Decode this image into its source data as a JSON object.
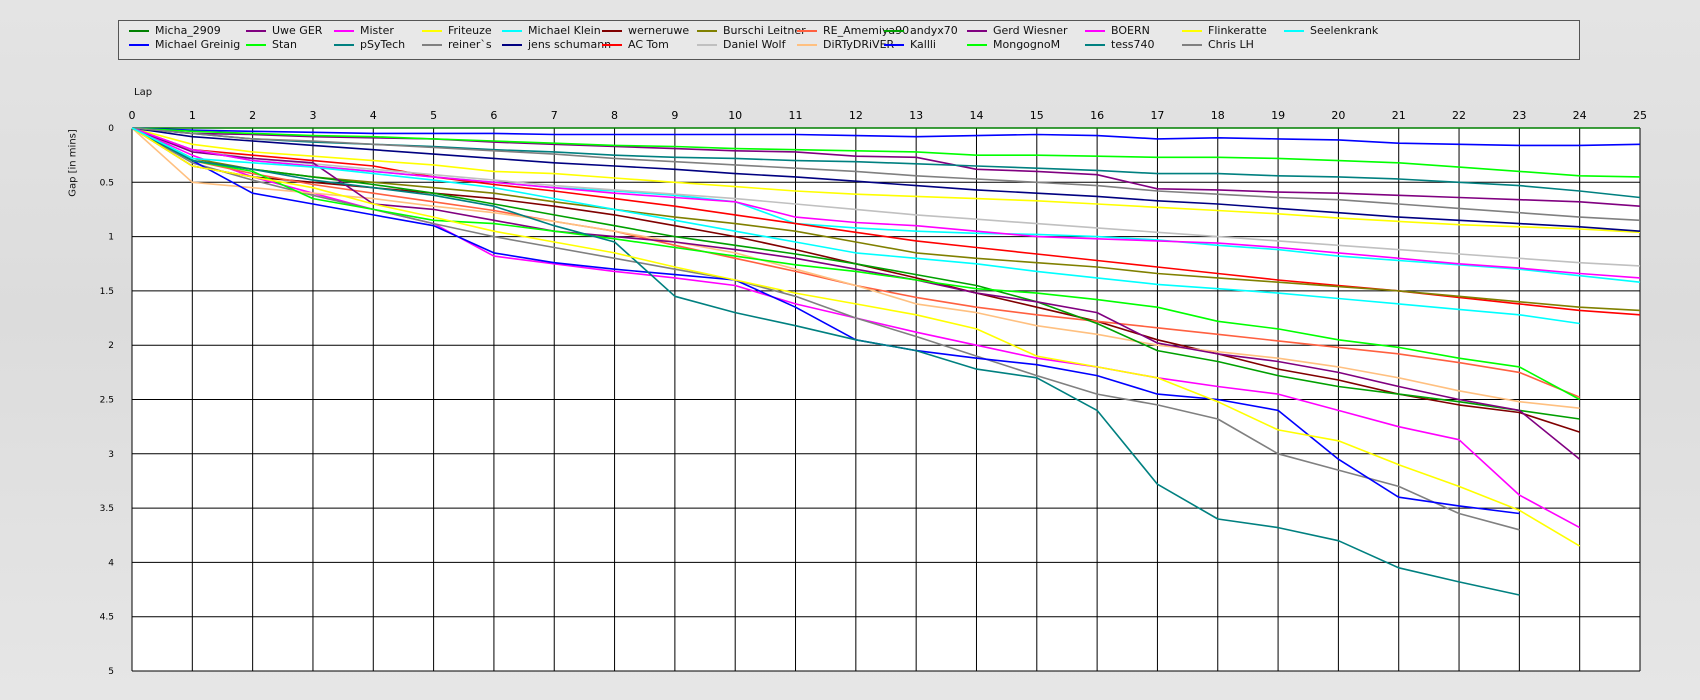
{
  "chart_data": {
    "type": "line",
    "xlabel": "Lap",
    "ylabel": "Gap [in mins]",
    "xlim": [
      0,
      25
    ],
    "ylim": [
      0,
      5
    ],
    "y_inverted": true,
    "grid": true,
    "legend_position": "top",
    "x_ticks": [
      "0",
      "1",
      "2",
      "3",
      "4",
      "5",
      "6",
      "7",
      "8",
      "9",
      "10",
      "11",
      "12",
      "13",
      "14",
      "15",
      "16",
      "17",
      "18",
      "19",
      "20",
      "21",
      "22",
      "23",
      "24",
      "25"
    ],
    "y_ticks": [
      "0",
      "0.5",
      "1",
      "1.5",
      "2",
      "2.5",
      "3",
      "3.5",
      "4",
      "4.5",
      "5"
    ],
    "series": [
      {
        "name": "Micha_2909",
        "color": "#008000",
        "values": [
          0,
          0,
          0,
          0,
          0,
          0,
          0,
          0,
          0,
          0,
          0,
          0,
          0,
          0,
          0,
          0,
          0,
          0,
          0,
          0,
          0,
          0,
          0,
          0,
          0,
          0
        ]
      },
      {
        "name": "Michael Greinig",
        "color": "#0000ff",
        "values": [
          0,
          0.02,
          0.03,
          0.04,
          0.05,
          0.05,
          0.05,
          0.06,
          0.06,
          0.06,
          0.06,
          0.06,
          0.07,
          0.08,
          0.07,
          0.06,
          0.07,
          0.1,
          0.09,
          0.1,
          0.11,
          0.14,
          0.15,
          0.16,
          0.16,
          0.15
        ]
      },
      {
        "name": "Uwe GER",
        "color": "#800080",
        "values": [
          0,
          0.05,
          0.06,
          0.08,
          0.09,
          0.1,
          0.13,
          0.15,
          0.17,
          0.19,
          0.21,
          0.22,
          0.26,
          0.27,
          0.38,
          0.4,
          0.43,
          0.56,
          0.57,
          0.59,
          0.6,
          0.62,
          0.64,
          0.66,
          0.68,
          0.72
        ]
      },
      {
        "name": "Stan",
        "color": "#00ff00",
        "values": [
          0,
          0.03,
          0.05,
          0.07,
          0.08,
          0.1,
          0.12,
          0.14,
          0.16,
          0.17,
          0.19,
          0.2,
          0.21,
          0.22,
          0.25,
          0.25,
          0.26,
          0.27,
          0.27,
          0.28,
          0.3,
          0.32,
          0.36,
          0.4,
          0.44,
          0.45
        ]
      },
      {
        "name": "Mister",
        "color": "#ff00ff",
        "values": [
          0,
          0.25,
          0.45,
          0.6,
          0.75,
          0.88,
          1.18,
          1.25,
          1.32,
          1.38,
          1.45,
          1.62,
          1.75,
          1.88,
          2.0,
          2.12,
          2.2,
          2.3,
          2.38,
          2.45,
          2.6,
          2.75,
          2.87,
          3.38,
          3.68
        ]
      },
      {
        "name": "pSyTech",
        "color": "#008080",
        "values": [
          0,
          0.05,
          0.1,
          0.13,
          0.15,
          0.17,
          0.2,
          0.22,
          0.25,
          0.27,
          0.28,
          0.3,
          0.31,
          0.33,
          0.35,
          0.37,
          0.39,
          0.42,
          0.42,
          0.44,
          0.45,
          0.47,
          0.5,
          0.53,
          0.58,
          0.64
        ]
      },
      {
        "name": "Friteuze",
        "color": "#ffff00",
        "values": [
          0,
          0.15,
          0.22,
          0.26,
          0.3,
          0.34,
          0.4,
          0.42,
          0.46,
          0.5,
          0.54,
          0.58,
          0.61,
          0.63,
          0.65,
          0.67,
          0.7,
          0.73,
          0.76,
          0.79,
          0.83,
          0.86,
          0.89,
          0.91,
          0.93,
          0.96
        ]
      },
      {
        "name": "reiner`s",
        "color": "#808080",
        "values": [
          0,
          0.32,
          0.48,
          0.62,
          0.75,
          0.88,
          1.0,
          1.1,
          1.2,
          1.3,
          1.4,
          1.55,
          1.75,
          1.92,
          2.1,
          2.28,
          2.45,
          2.55,
          2.68,
          3.0,
          3.15,
          3.3,
          3.55,
          3.7
        ]
      },
      {
        "name": "Michael Klein",
        "color": "#00ffff",
        "values": [
          0,
          0.2,
          0.3,
          0.35,
          0.4,
          0.45,
          0.5,
          0.55,
          0.58,
          0.62,
          0.68,
          0.88,
          0.92,
          0.95,
          0.97,
          0.98,
          1.0,
          1.03,
          1.08,
          1.12,
          1.18,
          1.22,
          1.26,
          1.3,
          1.36,
          1.42
        ]
      },
      {
        "name": "jens  schumann",
        "color": "#000080",
        "values": [
          0,
          0.08,
          0.12,
          0.16,
          0.2,
          0.24,
          0.28,
          0.32,
          0.35,
          0.38,
          0.42,
          0.45,
          0.49,
          0.53,
          0.57,
          0.6,
          0.63,
          0.67,
          0.7,
          0.74,
          0.78,
          0.82,
          0.85,
          0.88,
          0.91,
          0.95
        ]
      },
      {
        "name": "werneruwe",
        "color": "#800000",
        "values": [
          0,
          0.35,
          0.45,
          0.5,
          0.55,
          0.6,
          0.65,
          0.72,
          0.8,
          0.9,
          1.0,
          1.12,
          1.25,
          1.38,
          1.52,
          1.65,
          1.78,
          1.95,
          2.08,
          2.22,
          2.32,
          2.45,
          2.55,
          2.62,
          2.8
        ]
      },
      {
        "name": "AC Tom",
        "color": "#ff0000",
        "values": [
          0,
          0.2,
          0.25,
          0.3,
          0.35,
          0.45,
          0.52,
          0.58,
          0.65,
          0.72,
          0.8,
          0.88,
          0.96,
          1.04,
          1.1,
          1.16,
          1.22,
          1.28,
          1.34,
          1.4,
          1.45,
          1.5,
          1.56,
          1.62,
          1.68,
          1.72
        ]
      },
      {
        "name": "Burschi Leitner",
        "color": "#808000",
        "values": [
          0,
          0.28,
          0.38,
          0.45,
          0.5,
          0.55,
          0.6,
          0.68,
          0.75,
          0.82,
          0.88,
          0.95,
          1.05,
          1.15,
          1.2,
          1.24,
          1.28,
          1.34,
          1.38,
          1.42,
          1.46,
          1.5,
          1.55,
          1.6,
          1.65,
          1.68
        ]
      },
      {
        "name": "Daniel Wolf",
        "color": "#c0c0c0",
        "values": [
          0,
          0.2,
          0.28,
          0.33,
          0.38,
          0.43,
          0.48,
          0.53,
          0.57,
          0.61,
          0.65,
          0.7,
          0.75,
          0.8,
          0.84,
          0.88,
          0.92,
          0.96,
          1.0,
          1.04,
          1.08,
          1.12,
          1.16,
          1.2,
          1.24,
          1.27
        ]
      },
      {
        "name": "RE_Amemiya90",
        "color": "#ff6040",
        "values": [
          0,
          0.3,
          0.42,
          0.52,
          0.6,
          0.68,
          0.76,
          0.86,
          0.95,
          1.08,
          1.2,
          1.32,
          1.45,
          1.56,
          1.65,
          1.72,
          1.78,
          1.84,
          1.9,
          1.96,
          2.02,
          2.08,
          2.16,
          2.25,
          2.48
        ]
      },
      {
        "name": "DiRTyDRiVER",
        "color": "#ffc080",
        "values": [
          0,
          0.5,
          0.55,
          0.6,
          0.65,
          0.72,
          0.78,
          0.86,
          0.95,
          1.05,
          1.15,
          1.3,
          1.45,
          1.62,
          1.7,
          1.82,
          1.9,
          2.0,
          2.06,
          2.12,
          2.2,
          2.3,
          2.42,
          2.52,
          2.58
        ]
      },
      {
        "name": "andyx70",
        "color": "#00a000",
        "values": [
          0,
          0.3,
          0.38,
          0.45,
          0.52,
          0.6,
          0.7,
          0.8,
          0.9,
          1.0,
          1.08,
          1.16,
          1.25,
          1.35,
          1.45,
          1.6,
          1.8,
          2.05,
          2.15,
          2.28,
          2.38,
          2.45,
          2.52,
          2.6,
          2.68
        ]
      },
      {
        "name": "Kallli",
        "color": "#0000ff",
        "values": [
          0,
          0.3,
          0.6,
          0.7,
          0.8,
          0.9,
          1.15,
          1.24,
          1.3,
          1.35,
          1.4,
          1.65,
          1.95,
          2.05,
          2.12,
          2.18,
          2.28,
          2.45,
          2.5,
          2.6,
          3.05,
          3.4,
          3.48,
          3.55
        ]
      },
      {
        "name": "Gerd Wiesner",
        "color": "#800080",
        "values": [
          0,
          0.22,
          0.28,
          0.32,
          0.7,
          0.75,
          0.85,
          0.95,
          1.0,
          1.05,
          1.12,
          1.2,
          1.3,
          1.4,
          1.52,
          1.6,
          1.7,
          1.98,
          2.08,
          2.15,
          2.25,
          2.38,
          2.5,
          2.6,
          3.05
        ]
      },
      {
        "name": "MongognoM",
        "color": "#00ff00",
        "values": [
          0,
          0.3,
          0.4,
          0.65,
          0.75,
          0.85,
          0.88,
          0.95,
          1.02,
          1.1,
          1.18,
          1.26,
          1.32,
          1.4,
          1.48,
          1.52,
          1.58,
          1.65,
          1.78,
          1.85,
          1.95,
          2.02,
          2.12,
          2.2,
          2.5
        ]
      },
      {
        "name": "BOERN",
        "color": "#ff00ff",
        "values": [
          0,
          0.2,
          0.3,
          0.35,
          0.4,
          0.45,
          0.5,
          0.55,
          0.6,
          0.64,
          0.68,
          0.82,
          0.87,
          0.9,
          0.95,
          1.0,
          1.02,
          1.04,
          1.06,
          1.1,
          1.15,
          1.2,
          1.25,
          1.29,
          1.34,
          1.38
        ]
      },
      {
        "name": "tess740",
        "color": "#008080",
        "values": [
          0,
          0.3,
          0.38,
          0.48,
          0.55,
          0.62,
          0.72,
          0.9,
          1.05,
          1.55,
          1.7,
          1.82,
          1.95,
          2.05,
          2.22,
          2.3,
          2.6,
          3.28,
          3.6,
          3.68,
          3.8,
          4.05,
          4.18,
          4.3
        ]
      },
      {
        "name": "Flinkeratte",
        "color": "#ffff00",
        "values": [
          0,
          0.35,
          0.45,
          0.55,
          0.7,
          0.82,
          0.95,
          1.05,
          1.15,
          1.28,
          1.4,
          1.52,
          1.62,
          1.72,
          1.85,
          2.1,
          2.2,
          2.3,
          2.52,
          2.78,
          2.88,
          3.1,
          3.3,
          3.52,
          3.85
        ]
      },
      {
        "name": "Chris LH",
        "color": "#808080",
        "values": [
          0,
          0.05,
          0.1,
          0.12,
          0.15,
          0.18,
          0.21,
          0.24,
          0.28,
          0.31,
          0.34,
          0.37,
          0.4,
          0.44,
          0.47,
          0.5,
          0.53,
          0.58,
          0.61,
          0.64,
          0.66,
          0.7,
          0.74,
          0.78,
          0.82,
          0.85
        ]
      },
      {
        "name": "Seelenkrank",
        "color": "#00ffff",
        "values": [
          0,
          0.28,
          0.32,
          0.36,
          0.42,
          0.48,
          0.55,
          0.65,
          0.75,
          0.85,
          0.95,
          1.05,
          1.15,
          1.2,
          1.25,
          1.32,
          1.38,
          1.44,
          1.48,
          1.52,
          1.57,
          1.62,
          1.67,
          1.72,
          1.8
        ]
      }
    ]
  }
}
